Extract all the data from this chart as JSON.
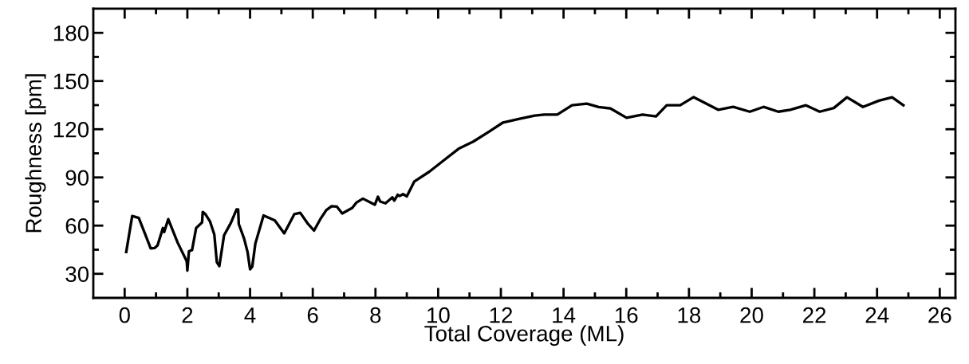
{
  "chart_data": {
    "type": "line",
    "xlabel": "Total Coverage (ML)",
    "ylabel": "Roughness [pm]",
    "xlim": [
      -1,
      26.5
    ],
    "ylim": [
      15,
      195
    ],
    "xticks": [
      0,
      2,
      4,
      6,
      8,
      10,
      12,
      14,
      16,
      18,
      20,
      22,
      24,
      26
    ],
    "yticks": [
      30,
      60,
      90,
      120,
      150,
      180
    ],
    "grid": false,
    "marker": "none",
    "line_style": "solid",
    "series": [
      {
        "color": "#000000",
        "x": [
          0.05,
          0.24,
          0.45,
          0.66,
          0.83,
          0.96,
          1.05,
          1.22,
          1.26,
          1.39,
          1.69,
          1.98,
          2.0,
          2.05,
          2.15,
          2.28,
          2.47,
          2.49,
          2.58,
          2.72,
          2.86,
          2.94,
          3.02,
          3.17,
          3.39,
          3.57,
          3.62,
          3.64,
          3.81,
          3.92,
          4.0,
          4.07,
          4.17,
          4.43,
          4.79,
          5.09,
          5.41,
          5.6,
          5.85,
          6.04,
          6.24,
          6.43,
          6.6,
          6.77,
          6.94,
          7.26,
          7.39,
          7.6,
          7.98,
          8.08,
          8.15,
          8.32,
          8.54,
          8.6,
          8.71,
          8.77,
          8.88,
          9.0,
          9.24,
          9.72,
          10.27,
          10.65,
          11.12,
          11.63,
          12.07,
          12.57,
          13.08,
          13.38,
          13.8,
          14.27,
          14.74,
          15.12,
          15.5,
          16.01,
          16.52,
          16.95,
          17.29,
          17.72,
          18.15,
          18.93,
          19.41,
          19.94,
          20.38,
          20.85,
          21.23,
          21.73,
          22.17,
          22.62,
          23.04,
          23.55,
          24.06,
          24.48,
          24.84
        ],
        "values": [
          43.6,
          66,
          64.8,
          54.4,
          45.8,
          46.1,
          47.7,
          58.5,
          56,
          64,
          49.4,
          37.8,
          32,
          44,
          44.8,
          58.5,
          62,
          68.5,
          67,
          62.7,
          54.4,
          37.3,
          34.8,
          53.9,
          61.8,
          70.1,
          70.1,
          61,
          51.9,
          43.6,
          32.8,
          34.5,
          48.9,
          66.3,
          63.2,
          55.2,
          67.1,
          68,
          61,
          56.9,
          64,
          69.6,
          72.1,
          71.8,
          67.6,
          71,
          74.3,
          76.8,
          73,
          78,
          75,
          73.9,
          77.6,
          75.6,
          79.2,
          78.4,
          79.6,
          78.2,
          87.5,
          93.6,
          102,
          107.8,
          112.3,
          118.6,
          124.2,
          126.4,
          128.5,
          129.1,
          129.1,
          134.9,
          135.9,
          133.8,
          132.9,
          127.1,
          129.1,
          128,
          134.9,
          134.9,
          140,
          132.1,
          133.9,
          130.9,
          133.9,
          130.9,
          132.1,
          134.9,
          130.9,
          133.2,
          139.9,
          133.9,
          137.8,
          139.9,
          134.9
        ]
      }
    ]
  }
}
